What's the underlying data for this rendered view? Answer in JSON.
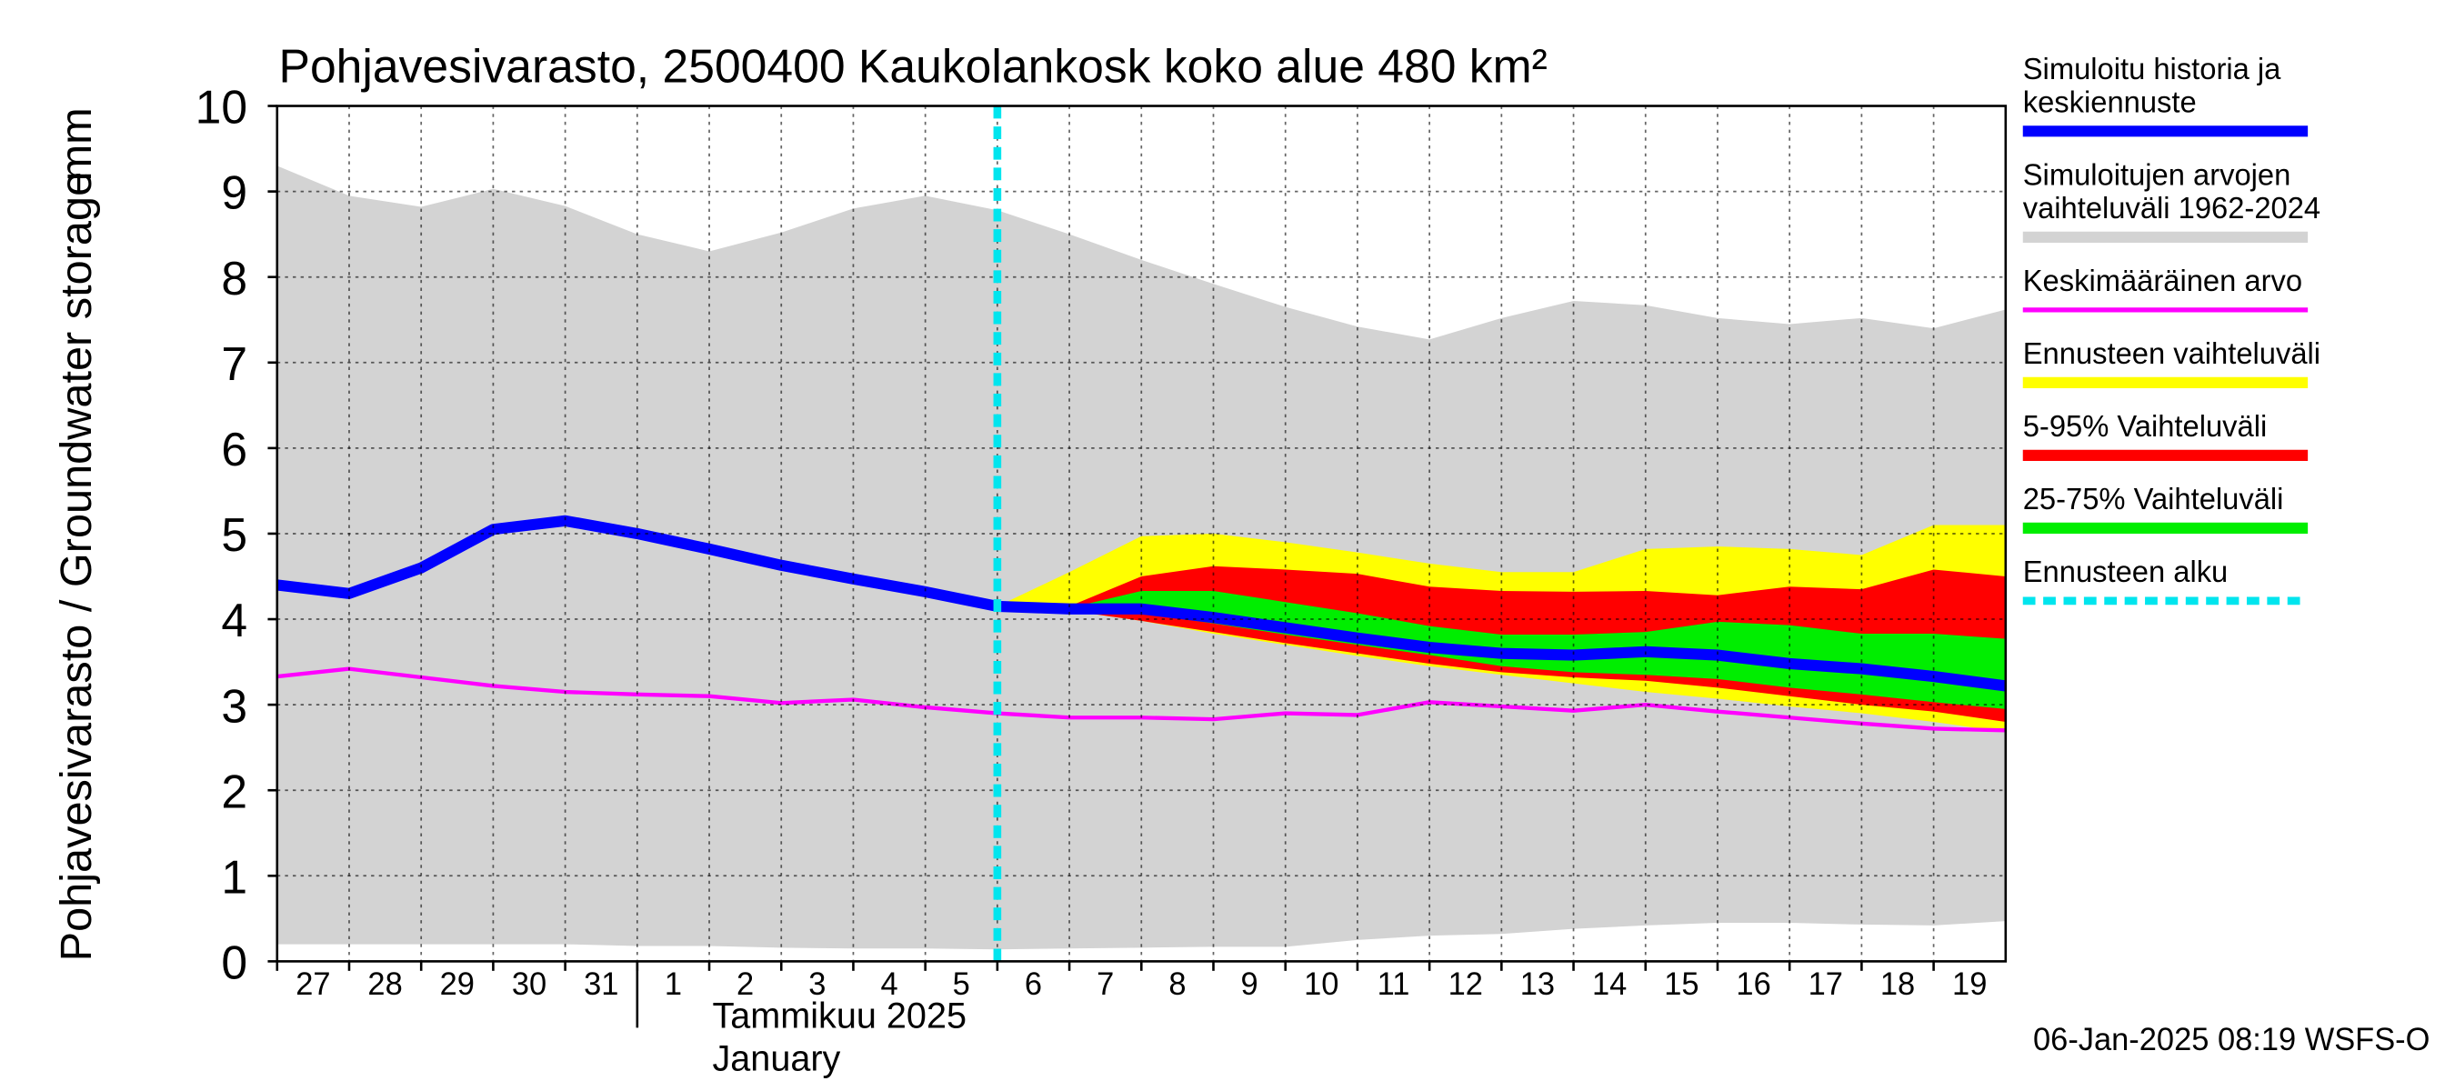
{
  "chart_data": {
    "type": "band_line",
    "title": "Pohjavesivarasto, 2500400 Kaukolankosk koko alue 480 km²",
    "ylabel": "Pohjavesivarasto / Groundwater storage",
    "yunit": "mm",
    "month_label": [
      "Tammikuu  2025",
      "January"
    ],
    "footer": "06-Jan-2025 08:19 WSFS-O",
    "xlim": [
      0,
      24
    ],
    "ylim": [
      0,
      10
    ],
    "yticks": [
      0,
      1,
      2,
      3,
      4,
      5,
      6,
      7,
      8,
      9,
      10
    ],
    "xticks": [
      {
        "value": 0,
        "label": "27"
      },
      {
        "value": 1,
        "label": "28"
      },
      {
        "value": 2,
        "label": "29"
      },
      {
        "value": 3,
        "label": "30"
      },
      {
        "value": 4,
        "label": "31"
      },
      {
        "value": 5,
        "label": "1"
      },
      {
        "value": 6,
        "label": "2"
      },
      {
        "value": 7,
        "label": "3"
      },
      {
        "value": 8,
        "label": "4"
      },
      {
        "value": 9,
        "label": "5"
      },
      {
        "value": 10,
        "label": "6"
      },
      {
        "value": 11,
        "label": "7"
      },
      {
        "value": 12,
        "label": "8"
      },
      {
        "value": 13,
        "label": "9"
      },
      {
        "value": 14,
        "label": "10"
      },
      {
        "value": 15,
        "label": "11"
      },
      {
        "value": 16,
        "label": "12"
      },
      {
        "value": 17,
        "label": "13"
      },
      {
        "value": 18,
        "label": "14"
      },
      {
        "value": 19,
        "label": "15"
      },
      {
        "value": 20,
        "label": "16"
      },
      {
        "value": 21,
        "label": "17"
      },
      {
        "value": 22,
        "label": "18"
      },
      {
        "value": 23,
        "label": "19"
      }
    ],
    "month_start": 5,
    "grid": true,
    "series": [
      {
        "name": [
          "Simuloitu historia ja",
          "keskiennuste"
        ],
        "kind": "line",
        "color": "#0000ff",
        "x": [
          0,
          1,
          2,
          3,
          4,
          5,
          6,
          7,
          8,
          9,
          10,
          11,
          12,
          13,
          14,
          15,
          16,
          17,
          18,
          19,
          20,
          21,
          22,
          23,
          24
        ],
        "values": [
          4.4,
          4.3,
          4.6,
          5.05,
          5.15,
          5.0,
          4.82,
          4.63,
          4.47,
          4.32,
          4.15,
          4.12,
          4.12,
          4.02,
          3.9,
          3.78,
          3.67,
          3.6,
          3.58,
          3.62,
          3.58,
          3.48,
          3.42,
          3.33,
          3.22
        ]
      },
      {
        "name": [
          "Simuloitujen arvojen",
          "vaihteluväli 1962-2024"
        ],
        "kind": "band",
        "color": "#d3d3d3",
        "x": [
          0,
          1,
          2,
          3,
          4,
          5,
          6,
          7,
          8,
          9,
          10,
          11,
          12,
          13,
          14,
          15,
          16,
          17,
          18,
          19,
          20,
          21,
          22,
          23,
          24
        ],
        "upper": [
          9.3,
          8.95,
          8.82,
          9.03,
          8.83,
          8.5,
          8.3,
          8.52,
          8.8,
          8.95,
          8.78,
          8.5,
          8.2,
          7.92,
          7.65,
          7.42,
          7.27,
          7.52,
          7.72,
          7.67,
          7.52,
          7.45,
          7.52,
          7.4,
          7.62
        ],
        "lower": [
          0.2,
          0.2,
          0.2,
          0.2,
          0.2,
          0.18,
          0.18,
          0.16,
          0.15,
          0.15,
          0.14,
          0.15,
          0.16,
          0.17,
          0.17,
          0.25,
          0.3,
          0.32,
          0.38,
          0.42,
          0.45,
          0.45,
          0.43,
          0.42,
          0.47
        ]
      },
      {
        "name": [
          "Keskimääräinen arvo"
        ],
        "kind": "line",
        "color": "#ff00ff",
        "x": [
          0,
          1,
          2,
          3,
          4,
          5,
          6,
          7,
          8,
          9,
          10,
          11,
          12,
          13,
          14,
          15,
          16,
          17,
          18,
          19,
          20,
          21,
          22,
          23,
          24
        ],
        "values": [
          3.33,
          3.42,
          3.32,
          3.22,
          3.15,
          3.12,
          3.1,
          3.02,
          3.06,
          2.97,
          2.9,
          2.85,
          2.85,
          2.83,
          2.9,
          2.88,
          3.03,
          2.98,
          2.93,
          3.0,
          2.92,
          2.85,
          2.78,
          2.72,
          2.7
        ]
      },
      {
        "name": [
          "Ennusteen vaihteluväli"
        ],
        "kind": "band",
        "color": "#ffff00",
        "x": [
          10,
          11,
          12,
          13,
          14,
          15,
          16,
          17,
          18,
          19,
          20,
          21,
          22,
          23,
          24
        ],
        "upper": [
          4.15,
          4.55,
          4.97,
          5.0,
          4.9,
          4.78,
          4.65,
          4.55,
          4.55,
          4.82,
          4.85,
          4.82,
          4.75,
          5.1,
          5.1
        ],
        "lower": [
          4.15,
          4.1,
          3.98,
          3.83,
          3.7,
          3.57,
          3.45,
          3.35,
          3.25,
          3.15,
          3.07,
          2.98,
          2.9,
          2.8,
          2.68
        ]
      },
      {
        "name": [
          "5-95% Vaihteluväli"
        ],
        "kind": "band",
        "color": "#ff0000",
        "x": [
          10,
          11,
          12,
          13,
          14,
          15,
          16,
          17,
          18,
          19,
          20,
          21,
          22,
          23,
          24
        ],
        "upper": [
          4.15,
          4.15,
          4.5,
          4.62,
          4.58,
          4.53,
          4.38,
          4.33,
          4.32,
          4.33,
          4.28,
          4.38,
          4.35,
          4.58,
          4.5
        ],
        "lower": [
          4.15,
          4.1,
          3.98,
          3.85,
          3.72,
          3.6,
          3.48,
          3.38,
          3.32,
          3.28,
          3.2,
          3.1,
          3.0,
          2.92,
          2.8
        ]
      },
      {
        "name": [
          "25-75% Vaihteluväli"
        ],
        "kind": "band",
        "color": "#00ee00",
        "x": [
          10,
          11,
          12,
          13,
          14,
          15,
          16,
          17,
          18,
          19,
          20,
          21,
          22,
          23,
          24
        ],
        "upper": [
          4.15,
          4.13,
          4.33,
          4.33,
          4.2,
          4.07,
          3.92,
          3.82,
          3.82,
          3.85,
          3.97,
          3.93,
          3.83,
          3.83,
          3.77
        ],
        "lower": [
          4.15,
          4.12,
          4.07,
          3.95,
          3.82,
          3.7,
          3.58,
          3.45,
          3.38,
          3.35,
          3.3,
          3.2,
          3.12,
          3.03,
          2.95
        ]
      },
      {
        "name": [
          "Ennusteen alku"
        ],
        "kind": "vline",
        "color": "#00e5ee",
        "x": 10
      }
    ]
  }
}
